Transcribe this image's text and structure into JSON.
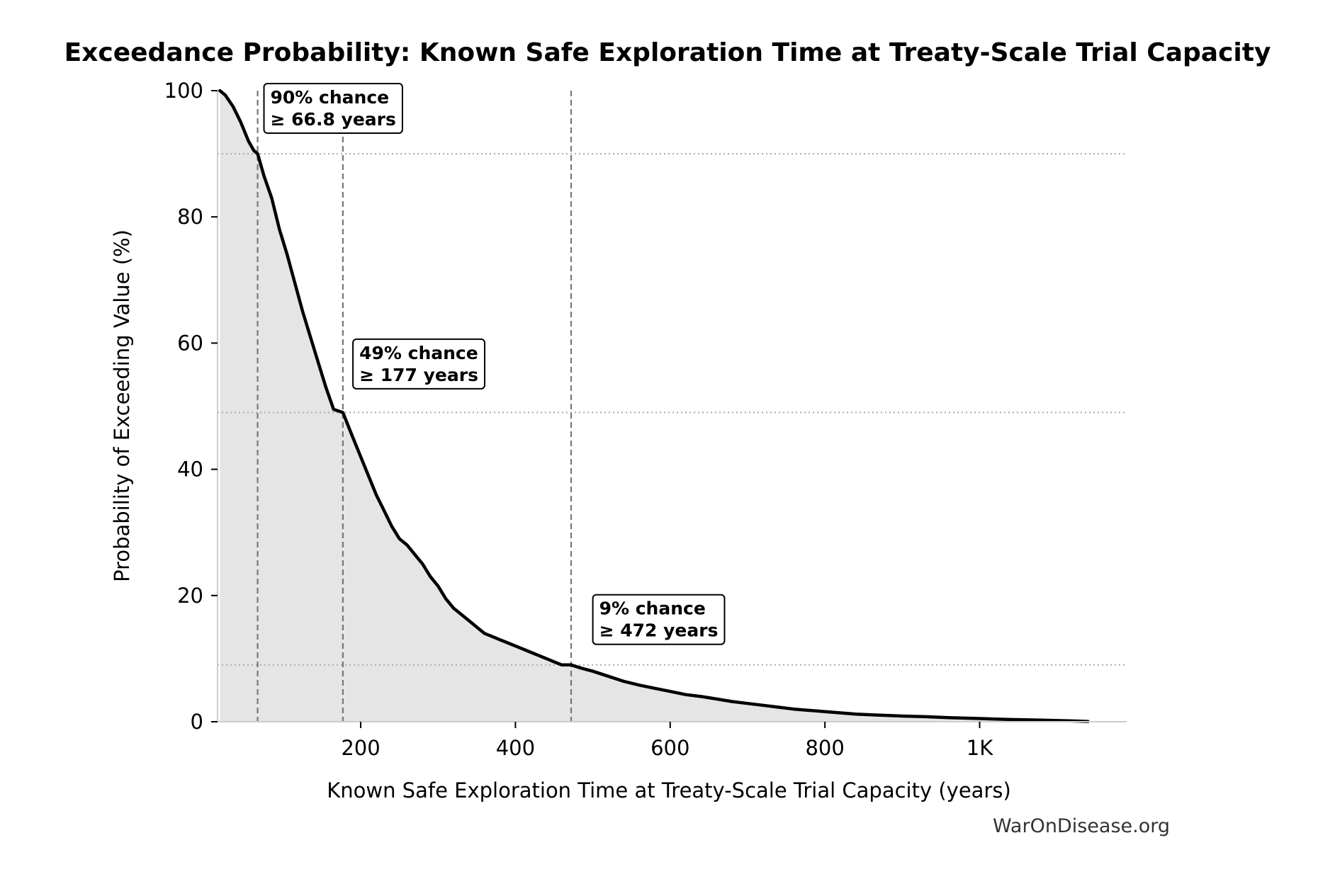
{
  "chart_data": {
    "type": "area",
    "title": "Exceedance Probability: Known Safe Exploration Time at Treaty-Scale Trial Capacity",
    "xlabel": "Known Safe Exploration Time at Treaty-Scale Trial Capacity (years)",
    "ylabel": "Probability of Exceeding Value (%)",
    "xlim": [
      15,
      1190
    ],
    "ylim": [
      0,
      100
    ],
    "x_ticks": [
      {
        "value": 200,
        "label": "200"
      },
      {
        "value": 400,
        "label": "400"
      },
      {
        "value": 600,
        "label": "600"
      },
      {
        "value": 800,
        "label": "800"
      },
      {
        "value": 1000,
        "label": "1K"
      }
    ],
    "y_ticks": [
      {
        "value": 0,
        "label": "0"
      },
      {
        "value": 20,
        "label": "20"
      },
      {
        "value": 40,
        "label": "40"
      },
      {
        "value": 60,
        "label": "60"
      },
      {
        "value": 80,
        "label": "80"
      },
      {
        "value": 100,
        "label": "100"
      }
    ],
    "grid": false,
    "fill_color": "#e5e5e5",
    "line_color": "#000000",
    "reference_color": "#777777",
    "series": [
      {
        "x": [
          18,
          25,
          35,
          45,
          55,
          62,
          66.8,
          75,
          85,
          95,
          105,
          115,
          125,
          135,
          145,
          155,
          165,
          177,
          190,
          200,
          210,
          220,
          230,
          240,
          250,
          260,
          270,
          280,
          290,
          300,
          310,
          320,
          330,
          340,
          350,
          360,
          370,
          380,
          390,
          400,
          410,
          420,
          430,
          440,
          450,
          460,
          472,
          485,
          500,
          520,
          540,
          560,
          580,
          600,
          620,
          640,
          660,
          680,
          700,
          720,
          740,
          760,
          780,
          800,
          820,
          840,
          860,
          880,
          900,
          930,
          960,
          1000,
          1040,
          1080,
          1120,
          1140
        ],
        "y": [
          100,
          99.3,
          97.5,
          95,
          92,
          90.5,
          90,
          86.5,
          83,
          78,
          74,
          69.5,
          65,
          61,
          57,
          53,
          49.5,
          49,
          45,
          42,
          39,
          36,
          33.5,
          31,
          29,
          28,
          26.5,
          25,
          23,
          21.5,
          19.5,
          18,
          17,
          16,
          15,
          14,
          13.5,
          13,
          12.5,
          12,
          11.5,
          11,
          10.5,
          10,
          9.5,
          9,
          9,
          8.5,
          8,
          7.2,
          6.4,
          5.8,
          5.3,
          4.8,
          4.3,
          4.0,
          3.6,
          3.2,
          2.9,
          2.6,
          2.3,
          2.0,
          1.8,
          1.6,
          1.4,
          1.2,
          1.1,
          1.0,
          0.9,
          0.8,
          0.65,
          0.5,
          0.35,
          0.25,
          0.12,
          0.05
        ]
      }
    ],
    "reference_lines": [
      {
        "x": 66.8,
        "y": 90
      },
      {
        "x": 177,
        "y": 49
      },
      {
        "x": 472,
        "y": 9
      }
    ],
    "annotations": [
      {
        "line1": "90% chance",
        "line2": "≥ 66.8 years",
        "anchor_x": 75,
        "anchor_y": 100
      },
      {
        "line1": "49% chance",
        "line2": "≥ 177 years",
        "anchor_x": 190,
        "anchor_y": 59.5
      },
      {
        "line1": "9% chance",
        "line2": "≥ 472 years",
        "anchor_x": 500,
        "anchor_y": 19
      }
    ],
    "credit": "WarOnDisease.org"
  }
}
